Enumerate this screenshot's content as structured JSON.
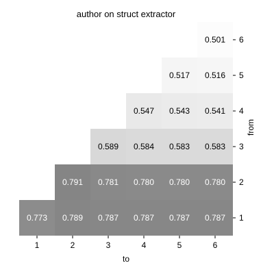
{
  "chart_data": {
    "type": "heatmap",
    "title": "author on struct extractor",
    "xlabel": "to",
    "ylabel": "from",
    "x_categories": [
      "1",
      "2",
      "3",
      "4",
      "5",
      "6"
    ],
    "y_categories": [
      "1",
      "2",
      "3",
      "4",
      "5",
      "6"
    ],
    "y_axis_side": "right",
    "y_order": "ascending-bottom-to-top",
    "cells": [
      {
        "from": "1",
        "to": "1",
        "value": 0.773,
        "label": "0.773"
      },
      {
        "from": "1",
        "to": "2",
        "value": 0.789,
        "label": "0.789"
      },
      {
        "from": "1",
        "to": "3",
        "value": 0.787,
        "label": "0.787"
      },
      {
        "from": "1",
        "to": "4",
        "value": 0.787,
        "label": "0.787"
      },
      {
        "from": "1",
        "to": "5",
        "value": 0.787,
        "label": "0.787"
      },
      {
        "from": "1",
        "to": "6",
        "value": 0.787,
        "label": "0.787"
      },
      {
        "from": "2",
        "to": "2",
        "value": 0.791,
        "label": "0.791"
      },
      {
        "from": "2",
        "to": "3",
        "value": 0.781,
        "label": "0.781"
      },
      {
        "from": "2",
        "to": "4",
        "value": 0.78,
        "label": "0.780"
      },
      {
        "from": "2",
        "to": "5",
        "value": 0.78,
        "label": "0.780"
      },
      {
        "from": "2",
        "to": "6",
        "value": 0.78,
        "label": "0.780"
      },
      {
        "from": "3",
        "to": "3",
        "value": 0.589,
        "label": "0.589"
      },
      {
        "from": "3",
        "to": "4",
        "value": 0.584,
        "label": "0.584"
      },
      {
        "from": "3",
        "to": "5",
        "value": 0.583,
        "label": "0.583"
      },
      {
        "from": "3",
        "to": "6",
        "value": 0.583,
        "label": "0.583"
      },
      {
        "from": "4",
        "to": "4",
        "value": 0.547,
        "label": "0.547"
      },
      {
        "from": "4",
        "to": "5",
        "value": 0.543,
        "label": "0.543"
      },
      {
        "from": "4",
        "to": "6",
        "value": 0.541,
        "label": "0.541"
      },
      {
        "from": "5",
        "to": "5",
        "value": 0.517,
        "label": "0.517"
      },
      {
        "from": "5",
        "to": "6",
        "value": 0.516,
        "label": "0.516"
      },
      {
        "from": "6",
        "to": "6",
        "value": 0.501,
        "label": "0.501"
      }
    ],
    "colormap": "grayscale: higher value darker",
    "grid": false,
    "legend": "none"
  }
}
